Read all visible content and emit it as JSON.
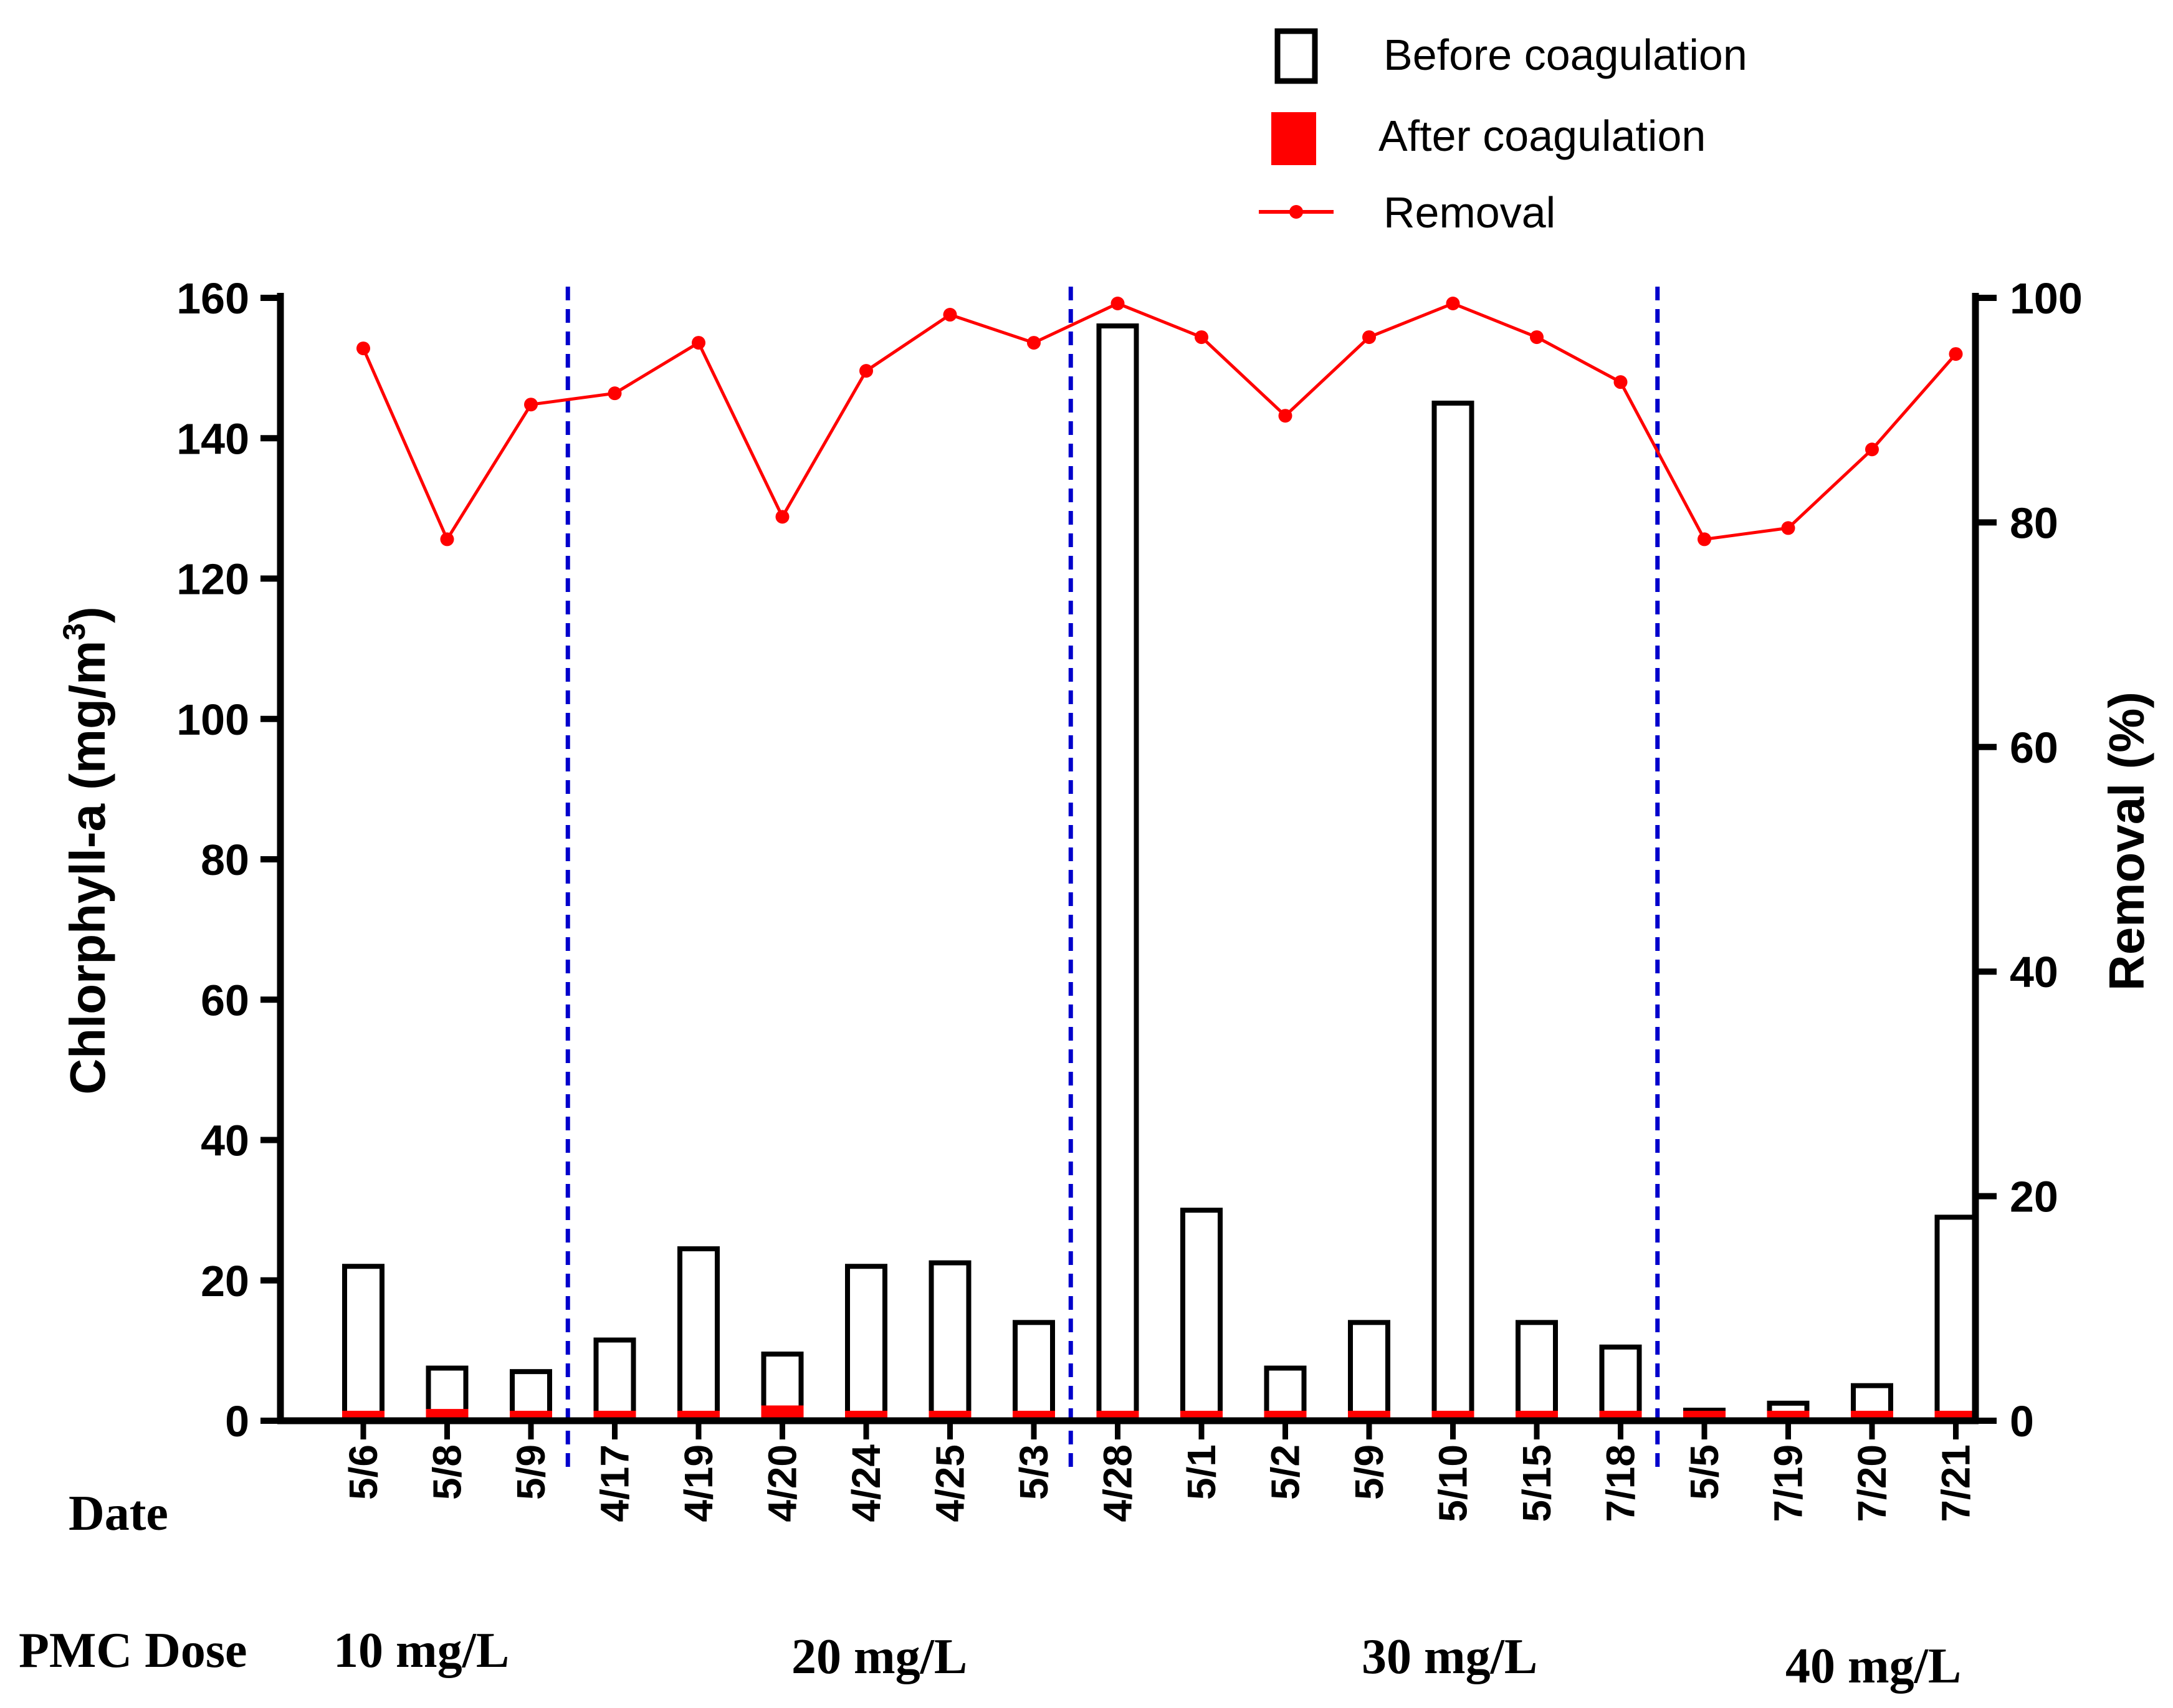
{
  "colors": {
    "before": "#000000",
    "after": "#ff0000",
    "removal": "#ff0000",
    "divider": "#0000cc"
  },
  "legend": {
    "before": "Before coagulation",
    "after": "After coagulation",
    "removal": "Removal"
  },
  "chart_data": {
    "type": "bar",
    "title": "",
    "xlabel": "Date",
    "ylabel_left": "Chlorphyll-a (mg/m",
    "ylabel_left_sup": "3",
    "ylabel_left_end": ")",
    "ylabel_right": "Removal (%)",
    "ylim_left": [
      0,
      160
    ],
    "ylim_right": [
      0,
      100
    ],
    "yticks_left": [
      "0",
      "20",
      "40",
      "60",
      "80",
      "100",
      "120",
      "140",
      "160"
    ],
    "yticks_right": [
      "0",
      "20",
      "40",
      "60",
      "80",
      "100"
    ],
    "categories": [
      "5/6",
      "5/8",
      "5/9",
      "4/17",
      "4/19",
      "4/20",
      "4/24",
      "4/25",
      "5/3",
      "4/28",
      "5/1",
      "5/2",
      "5/9",
      "5/10",
      "5/15",
      "7/18",
      "5/5",
      "7/19",
      "7/20",
      "7/21"
    ],
    "series": [
      {
        "name": "Before coagulation",
        "axis": "left",
        "type": "bar",
        "values": [
          22,
          7.5,
          7,
          11.5,
          24.5,
          9.5,
          22,
          22.5,
          14,
          156,
          30,
          7.5,
          14,
          145,
          14,
          10.5,
          1.5,
          2.5,
          5,
          29
        ]
      },
      {
        "name": "After coagulation",
        "axis": "left",
        "type": "bar",
        "values": [
          0.8,
          1.5,
          0.6,
          0.8,
          0.8,
          2,
          1.2,
          0.5,
          0.5,
          0.8,
          0.8,
          0.6,
          0.5,
          0.4,
          0.4,
          0.6,
          0.5,
          0.5,
          0.5,
          1.2
        ]
      },
      {
        "name": "Removal",
        "axis": "right",
        "type": "line",
        "values": [
          95.5,
          78.5,
          90.5,
          91.5,
          96,
          80.5,
          93.5,
          98.5,
          96,
          99.5,
          96.5,
          89.5,
          96.5,
          99.5,
          96.5,
          92.5,
          78.5,
          79.5,
          86.5,
          95
        ]
      }
    ],
    "group_dividers_after_index": [
      2,
      8,
      15
    ],
    "dose_groups": [
      {
        "label": "10 mg/L",
        "prefix": "PMC Dose",
        "from": 0,
        "to": 2
      },
      {
        "label": "20 mg/L",
        "from": 3,
        "to": 8
      },
      {
        "label": "30 mg/L",
        "from": 9,
        "to": 15
      },
      {
        "label": "40 mg/L",
        "from": 16,
        "to": 19
      }
    ]
  }
}
